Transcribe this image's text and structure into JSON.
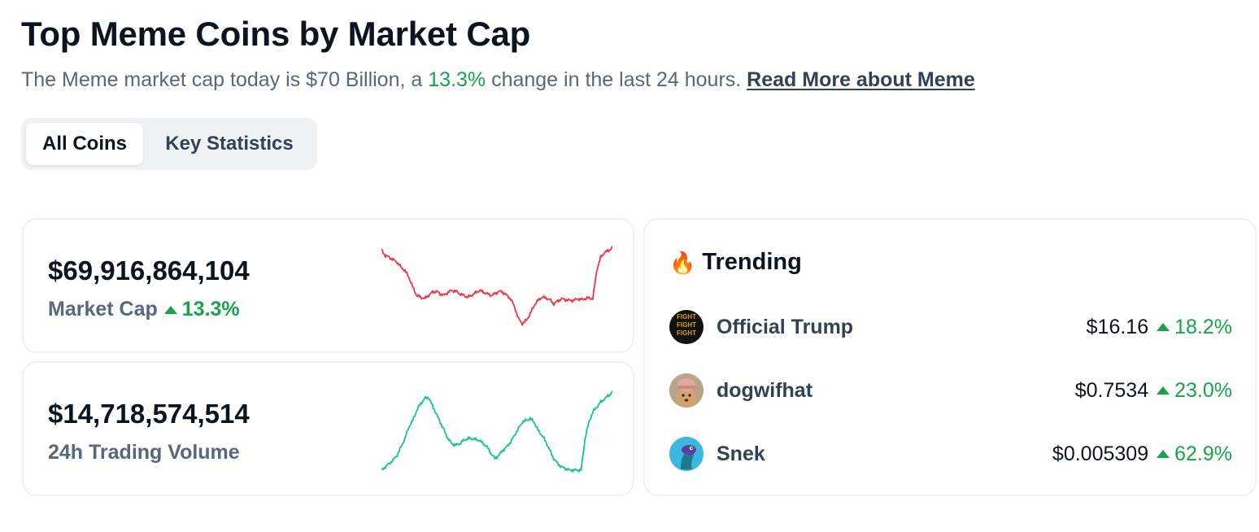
{
  "page": {
    "title": "Top Meme Coins by Market Cap",
    "subtitle_prefix": "The Meme market cap today is $70 Billion, a ",
    "subtitle_change": "13.3%",
    "subtitle_suffix": " change in the last 24 hours. ",
    "read_more": "Read More about Meme"
  },
  "tabs": [
    {
      "label": "All Coins",
      "active": true
    },
    {
      "label": "Key Statistics",
      "active": false
    }
  ],
  "stats": {
    "market_cap": {
      "value": "$69,916,864,104",
      "label": "Market Cap",
      "change": "13.3%",
      "line_color": "#ea3943",
      "sparkline": [
        0.95,
        0.88,
        0.86,
        0.83,
        0.8,
        0.74,
        0.7,
        0.62,
        0.5,
        0.4,
        0.38,
        0.36,
        0.4,
        0.44,
        0.45,
        0.42,
        0.4,
        0.44,
        0.46,
        0.45,
        0.42,
        0.4,
        0.38,
        0.4,
        0.43,
        0.46,
        0.44,
        0.42,
        0.4,
        0.42,
        0.45,
        0.44,
        0.4,
        0.36,
        0.26,
        0.12,
        0.06,
        0.1,
        0.18,
        0.28,
        0.34,
        0.38,
        0.37,
        0.35,
        0.3,
        0.33,
        0.36,
        0.35,
        0.34,
        0.34,
        0.36,
        0.35,
        0.36,
        0.37,
        0.36,
        0.7,
        0.86,
        0.92,
        0.94,
        0.98
      ]
    },
    "volume": {
      "value": "$14,718,574,514",
      "label": "24h Trading Volume",
      "line_color": "#16c784",
      "sparkline": [
        0.02,
        0.06,
        0.1,
        0.14,
        0.2,
        0.3,
        0.4,
        0.54,
        0.62,
        0.74,
        0.82,
        0.88,
        0.9,
        0.8,
        0.7,
        0.6,
        0.5,
        0.4,
        0.34,
        0.32,
        0.34,
        0.38,
        0.4,
        0.4,
        0.39,
        0.38,
        0.34,
        0.3,
        0.22,
        0.16,
        0.2,
        0.26,
        0.3,
        0.36,
        0.44,
        0.52,
        0.6,
        0.62,
        0.64,
        0.6,
        0.5,
        0.44,
        0.36,
        0.26,
        0.16,
        0.1,
        0.06,
        0.04,
        0.02,
        0.02,
        0.02,
        0.02,
        0.4,
        0.6,
        0.72,
        0.78,
        0.84,
        0.88,
        0.92,
        0.96
      ]
    }
  },
  "trending": {
    "title": "Trending",
    "icon": "fire-icon",
    "coins": [
      {
        "name": "Official Trump",
        "price": "$16.16",
        "change": "18.2%",
        "avatar": "trump-avatar"
      },
      {
        "name": "dogwifhat",
        "price": "$0.7534",
        "change": "23.0%",
        "avatar": "dogwifhat-avatar"
      },
      {
        "name": "Snek",
        "price": "$0.005309",
        "change": "62.9%",
        "avatar": "snek-avatar"
      }
    ]
  },
  "colors": {
    "positive": "#16a34a",
    "negative": "#ea3943",
    "text_primary": "#0d1421",
    "text_secondary": "#58667e"
  }
}
